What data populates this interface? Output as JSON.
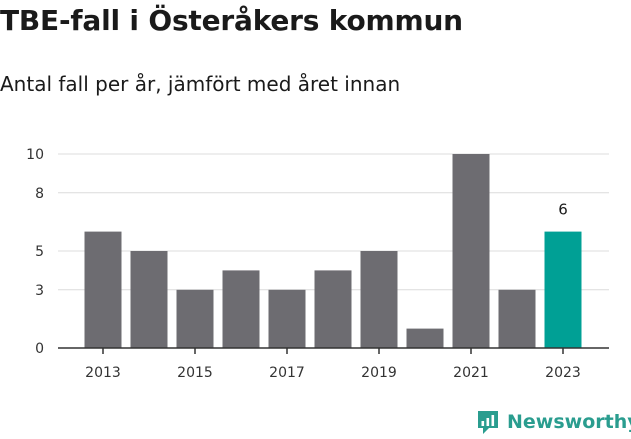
{
  "title": "TBE-fall i Österåkers kommun",
  "subtitle": "Antal fall per år, jämfört med året innan",
  "brand": "Newsworthy",
  "colors": {
    "bar": "#6d6c71",
    "highlight": "#00a095",
    "grid": "#dcdcdc",
    "axis": "#333333",
    "brand": "#2a9d8f"
  },
  "chart_data": {
    "type": "bar",
    "categories": [
      "2013",
      "2014",
      "2015",
      "2016",
      "2017",
      "2018",
      "2019",
      "2020",
      "2021",
      "2022",
      "2023"
    ],
    "values": [
      6,
      5,
      3,
      4,
      3,
      4,
      5,
      1,
      10,
      3,
      6
    ],
    "highlight_index": 10,
    "data_labels": [
      {
        "index": 10,
        "text": "6"
      }
    ],
    "x_tick_labels": [
      "2013",
      "",
      "2015",
      "",
      "2017",
      "",
      "2019",
      "",
      "2021",
      "",
      "2023"
    ],
    "y_ticks": [
      0,
      3,
      5,
      8,
      10
    ],
    "ylim": [
      0,
      10
    ],
    "grid": true,
    "legend": "none"
  }
}
